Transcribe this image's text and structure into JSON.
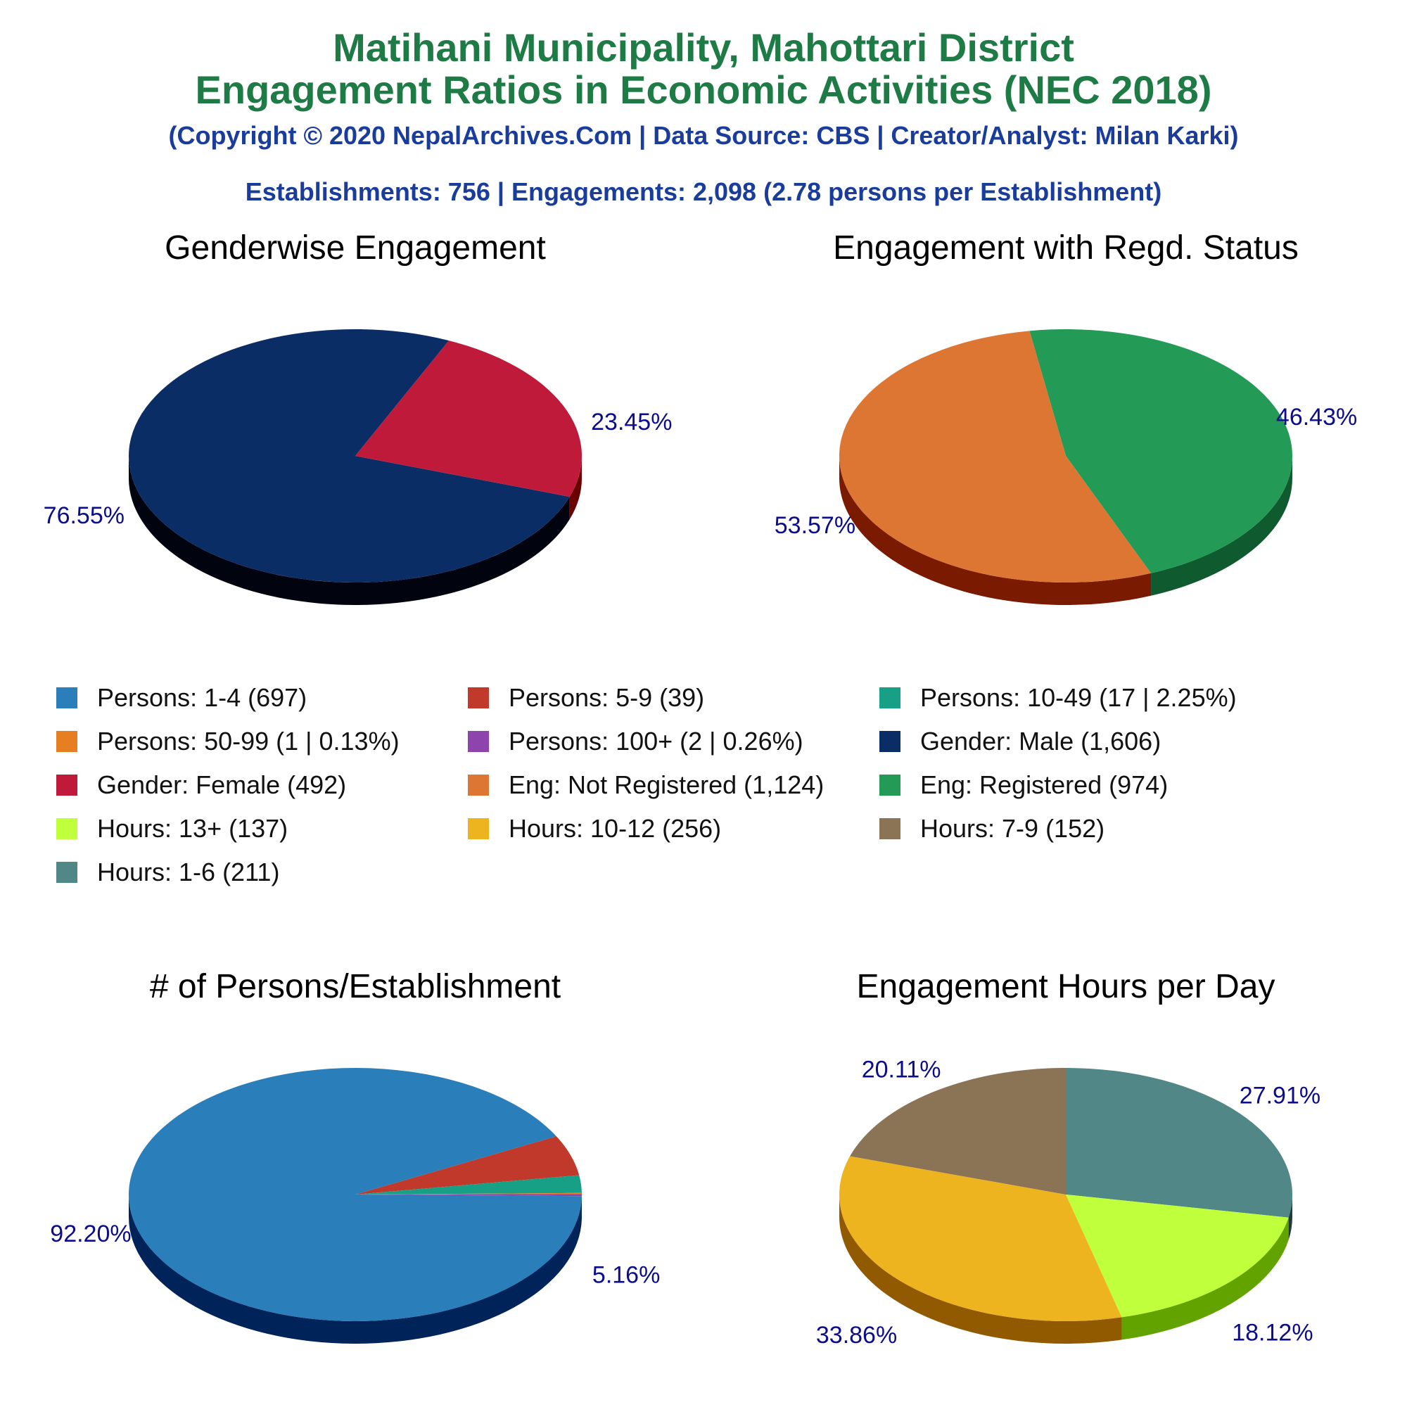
{
  "header": {
    "title_line1": "Matihani Municipality, Mahottari District",
    "title_line2": "Engagement Ratios in Economic Activities (NEC 2018)",
    "copyright": "(Copyright © 2020 NepalArchives.Com | Data Source: CBS | Creator/Analyst: Milan Karki)",
    "summary": "Establishments: 756 | Engagements: 2,098 (2.78 persons per Establishment)"
  },
  "colors": {
    "label_text": "#0b0d8c",
    "title_text": "#000000"
  },
  "legend": {
    "items": [
      {
        "label": "Persons: 1-4 (697)",
        "color": "#2a7fba"
      },
      {
        "label": "Persons: 5-9 (39)",
        "color": "#c0392b"
      },
      {
        "label": "Persons: 10-49 (17 | 2.25%)",
        "color": "#17a085"
      },
      {
        "label": "Persons: 50-99 (1 | 0.13%)",
        "color": "#e67e22"
      },
      {
        "label": "Persons: 100+ (2 | 0.26%)",
        "color": "#8e44ad"
      },
      {
        "label": "Gender: Male (1,606)",
        "color": "#0b2d66"
      },
      {
        "label": "Gender: Female (492)",
        "color": "#c01a3b"
      },
      {
        "label": "Eng: Not Registered (1,124)",
        "color": "#dd7533"
      },
      {
        "label": "Eng: Registered (974)",
        "color": "#239b56"
      },
      {
        "label": "Hours: 13+ (137)",
        "color": "#bfff3c"
      },
      {
        "label": "Hours: 10-12 (256)",
        "color": "#edb420"
      },
      {
        "label": "Hours: 7-9 (152)",
        "color": "#8b7355"
      },
      {
        "label": "Hours: 1-6 (211)",
        "color": "#528787"
      }
    ]
  },
  "chart_data": [
    {
      "type": "pie",
      "title": "Genderwise Engagement",
      "series": [
        {
          "name": "Gender: Male",
          "value": 1606,
          "percent_label": "76.55%",
          "color": "#0b2d66",
          "side_color": "#01030f"
        },
        {
          "name": "Gender: Female",
          "value": 492,
          "percent_label": "23.45%",
          "color": "#c01a3b",
          "side_color": "#6a0000"
        }
      ]
    },
    {
      "type": "pie",
      "title": "Engagement with Regd. Status",
      "series": [
        {
          "name": "Eng: Registered",
          "value": 974,
          "percent_label": "46.43%",
          "color": "#239b56",
          "side_color": "#0f5a2e"
        },
        {
          "name": "Eng: Not Registered",
          "value": 1124,
          "percent_label": "53.57%",
          "color": "#dd7533",
          "side_color": "#7a1a00"
        }
      ]
    },
    {
      "type": "pie",
      "title": "# of Persons/Establishment",
      "series": [
        {
          "name": "Persons: 1-4",
          "value": 697,
          "percent_label": "92.20%",
          "color": "#2a7fba",
          "side_color": "#00245a"
        },
        {
          "name": "Persons: 5-9",
          "value": 39,
          "percent_label": "5.16%",
          "color": "#c0392b",
          "side_color": "#650000"
        },
        {
          "name": "Persons: 10-49",
          "value": 17,
          "percent_label": "",
          "color": "#17a085",
          "side_color": "#0a5045"
        },
        {
          "name": "Persons: 50-99",
          "value": 1,
          "percent_label": "",
          "color": "#e67e22",
          "side_color": "#7a3a00"
        },
        {
          "name": "Persons: 100+",
          "value": 2,
          "percent_label": "",
          "color": "#8e44ad",
          "side_color": "#4a1a60"
        }
      ]
    },
    {
      "type": "pie",
      "title": "Engagement Hours per Day",
      "series": [
        {
          "name": "Hours: 1-6",
          "value": 211,
          "percent_label": "27.91%",
          "color": "#528787",
          "side_color": "#213a3a"
        },
        {
          "name": "Hours: 13+",
          "value": 137,
          "percent_label": "18.12%",
          "color": "#bfff3c",
          "side_color": "#62a300"
        },
        {
          "name": "Hours: 10-12",
          "value": 256,
          "percent_label": "33.86%",
          "color": "#edb420",
          "side_color": "#925a00"
        },
        {
          "name": "Hours: 7-9",
          "value": 152,
          "percent_label": "20.11%",
          "color": "#8b7355",
          "side_color": "#4a3a28"
        }
      ]
    }
  ]
}
